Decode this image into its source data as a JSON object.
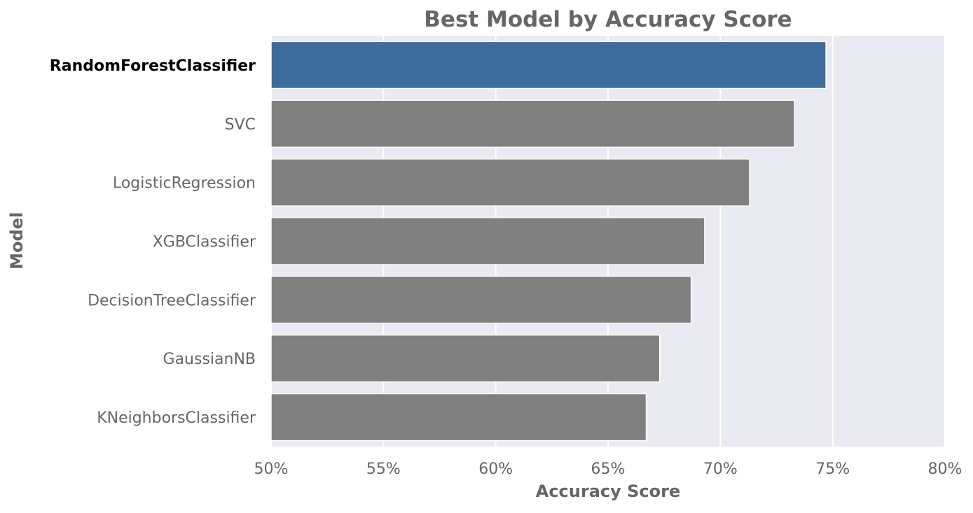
{
  "chart_data": {
    "type": "bar",
    "orientation": "horizontal",
    "title": "Best Model by Accuracy Score",
    "xlabel": "Accuracy Score",
    "ylabel": "Model",
    "categories": [
      "RandomForestClassifier",
      "SVC",
      "LogisticRegression",
      "XGBClassifier",
      "DecisionTreeClassifier",
      "GaussianNB",
      "KNeighborsClassifier"
    ],
    "values": [
      74.7,
      73.3,
      71.3,
      69.3,
      68.7,
      67.3,
      66.7
    ],
    "xlim": [
      50,
      80
    ],
    "xticks": [
      50,
      55,
      60,
      65,
      70,
      75,
      80
    ],
    "xtick_labels": [
      "50%",
      "55%",
      "60%",
      "65%",
      "70%",
      "75%",
      "80%"
    ],
    "highlighted_category": "RandomForestClassifier",
    "grid": true,
    "colors": {
      "highlight": "#3d6b9b",
      "default": "#808080",
      "plot_background": "#eaeaf2",
      "grid": "#ffffff"
    }
  }
}
